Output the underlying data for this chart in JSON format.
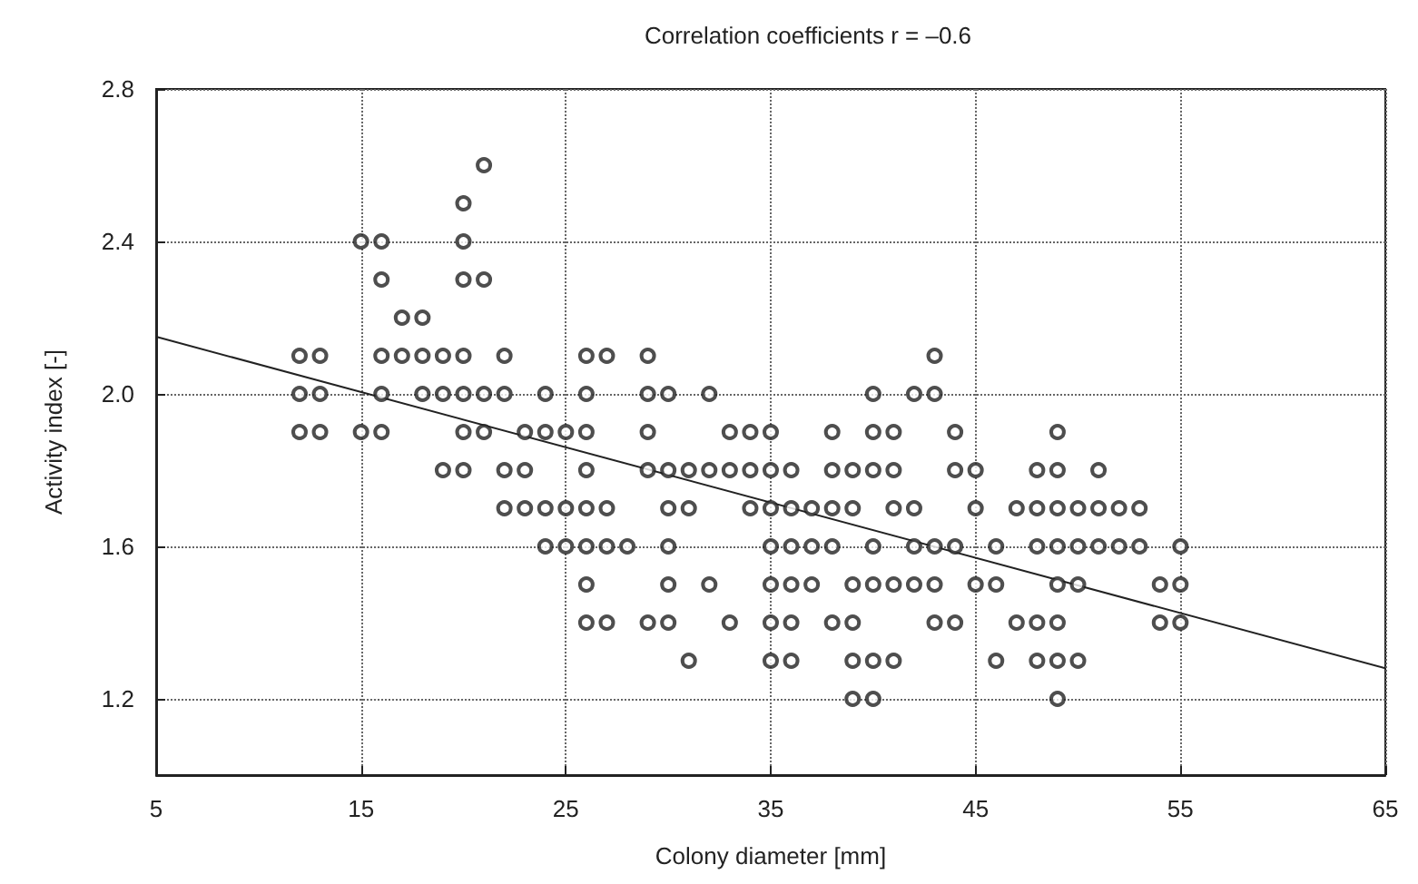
{
  "chart_data": {
    "type": "scatter",
    "title": "Correlation coefficients r = –0.6",
    "xlabel": "Colony diameter [mm]",
    "ylabel": "Activity index [-]",
    "xlim": [
      5,
      65
    ],
    "xticks": [
      5,
      15,
      25,
      35,
      45,
      55,
      65
    ],
    "ylim": [
      1.0,
      2.8
    ],
    "yticks": [
      1.2,
      1.6,
      {
        "value": 2.0,
        "label": "2.0"
      },
      2.4,
      2.8
    ],
    "grid": true,
    "marker": "circle",
    "series": [
      {
        "color": "#222222",
        "x": [
          21,
          20,
          15,
          16,
          20,
          16,
          20,
          21,
          17,
          18,
          12,
          13,
          16,
          17,
          18,
          19,
          20,
          22,
          26,
          27,
          29,
          43,
          12,
          13,
          16,
          18,
          19,
          20,
          21,
          22,
          24,
          26,
          29,
          30,
          32,
          40,
          42,
          43,
          12,
          13,
          15,
          16,
          20,
          21,
          23,
          24,
          25,
          26,
          29,
          33,
          34,
          35,
          38,
          40,
          41,
          44,
          49,
          19,
          20,
          22,
          23,
          26,
          29,
          30,
          31,
          32,
          33,
          34,
          35,
          36,
          38,
          39,
          40,
          41,
          44,
          45,
          48,
          49,
          51,
          22,
          23,
          24,
          25,
          26,
          27,
          30,
          31,
          34,
          35,
          36,
          37,
          38,
          39,
          41,
          42,
          45,
          47,
          48,
          49,
          50,
          51,
          52,
          53,
          24,
          25,
          26,
          27,
          28,
          30,
          35,
          36,
          37,
          38,
          40,
          42,
          43,
          44,
          46,
          48,
          49,
          50,
          51,
          52,
          53,
          55,
          26,
          30,
          32,
          35,
          36,
          37,
          39,
          40,
          41,
          42,
          43,
          45,
          46,
          49,
          50,
          54,
          55,
          26,
          27,
          29,
          30,
          33,
          35,
          36,
          38,
          39,
          43,
          44,
          47,
          48,
          49,
          54,
          55,
          31,
          35,
          36,
          39,
          40,
          41,
          46,
          48,
          49,
          50,
          39,
          40,
          49
        ],
        "values": [
          2.6,
          2.5,
          2.4,
          2.4,
          2.4,
          2.3,
          2.3,
          2.3,
          2.2,
          2.2,
          2.1,
          2.1,
          2.1,
          2.1,
          2.1,
          2.1,
          2.1,
          2.1,
          2.1,
          2.1,
          2.1,
          2.1,
          2.0,
          2.0,
          2.0,
          2.0,
          2.0,
          2.0,
          2.0,
          2.0,
          2.0,
          2.0,
          2.0,
          2.0,
          2.0,
          2.0,
          2.0,
          2.0,
          1.9,
          1.9,
          1.9,
          1.9,
          1.9,
          1.9,
          1.9,
          1.9,
          1.9,
          1.9,
          1.9,
          1.9,
          1.9,
          1.9,
          1.9,
          1.9,
          1.9,
          1.9,
          1.9,
          1.8,
          1.8,
          1.8,
          1.8,
          1.8,
          1.8,
          1.8,
          1.8,
          1.8,
          1.8,
          1.8,
          1.8,
          1.8,
          1.8,
          1.8,
          1.8,
          1.8,
          1.8,
          1.8,
          1.8,
          1.8,
          1.8,
          1.7,
          1.7,
          1.7,
          1.7,
          1.7,
          1.7,
          1.7,
          1.7,
          1.7,
          1.7,
          1.7,
          1.7,
          1.7,
          1.7,
          1.7,
          1.7,
          1.7,
          1.7,
          1.7,
          1.7,
          1.7,
          1.7,
          1.7,
          1.7,
          1.6,
          1.6,
          1.6,
          1.6,
          1.6,
          1.6,
          1.6,
          1.6,
          1.6,
          1.6,
          1.6,
          1.6,
          1.6,
          1.6,
          1.6,
          1.6,
          1.6,
          1.6,
          1.6,
          1.6,
          1.6,
          1.6,
          1.5,
          1.5,
          1.5,
          1.5,
          1.5,
          1.5,
          1.5,
          1.5,
          1.5,
          1.5,
          1.5,
          1.5,
          1.5,
          1.5,
          1.5,
          1.5,
          1.5,
          1.4,
          1.4,
          1.4,
          1.4,
          1.4,
          1.4,
          1.4,
          1.4,
          1.4,
          1.4,
          1.4,
          1.4,
          1.4,
          1.4,
          1.4,
          1.4,
          1.3,
          1.3,
          1.3,
          1.3,
          1.3,
          1.3,
          1.3,
          1.3,
          1.3,
          1.3,
          1.2,
          1.2,
          1.2
        ]
      },
      {
        "type": "line",
        "color": "#222222",
        "marker": "none",
        "line_style": "solid",
        "x": [
          5,
          65
        ],
        "values": [
          2.15,
          1.28
        ]
      }
    ]
  }
}
